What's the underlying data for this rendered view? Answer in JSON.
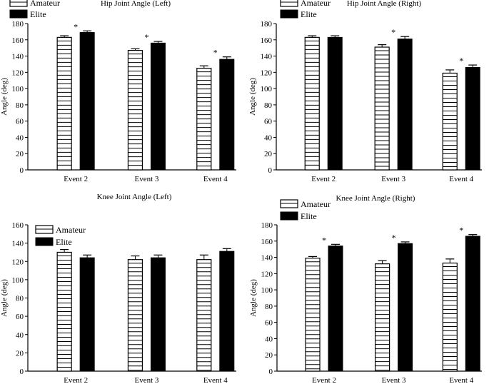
{
  "chart_data": [
    {
      "type": "bar",
      "title": "Hip Joint Angle (Left)",
      "xlabel": "",
      "ylabel": "Angle (deg)",
      "ylim": [
        0,
        180
      ],
      "ytick_step": 20,
      "legend_position": "top-left, above plot",
      "categories": [
        "Event 2",
        "Event 3",
        "Event 4"
      ],
      "series": [
        {
          "name": "Amateur",
          "pattern": "horizontal-stripes",
          "values": [
            163,
            147,
            125
          ],
          "errors": [
            2,
            2,
            3
          ]
        },
        {
          "name": "Elite",
          "pattern": "solid-black",
          "values": [
            169,
            156,
            136
          ],
          "errors": [
            2,
            2,
            3
          ]
        }
      ],
      "annotations": [
        "*",
        "*",
        "*"
      ]
    },
    {
      "type": "bar",
      "title": "Hip Joint Angle (Right)",
      "xlabel": "",
      "ylabel": "Angle (deg)",
      "ylim": [
        0,
        180
      ],
      "ytick_step": 20,
      "legend_position": "top-left, above plot",
      "categories": [
        "Event 2",
        "Event 3",
        "Event 4"
      ],
      "series": [
        {
          "name": "Amateur",
          "pattern": "horizontal-stripes",
          "values": [
            163,
            151,
            119
          ],
          "errors": [
            2,
            3,
            4
          ]
        },
        {
          "name": "Elite",
          "pattern": "solid-black",
          "values": [
            163,
            161,
            126
          ],
          "errors": [
            2,
            3,
            3
          ]
        }
      ],
      "annotations": [
        "",
        "*",
        "*"
      ]
    },
    {
      "type": "bar",
      "title": "Knee Joint Angle (Left)",
      "xlabel": "",
      "ylabel": "Angle (deg)",
      "ylim": [
        0,
        160
      ],
      "ytick_step": 20,
      "legend_position": "top-left, inside plot",
      "categories": [
        "Event 2",
        "Event 3",
        "Event 4"
      ],
      "series": [
        {
          "name": "Amateur",
          "pattern": "horizontal-stripes",
          "values": [
            130,
            122,
            122
          ],
          "errors": [
            3,
            4,
            5
          ]
        },
        {
          "name": "Elite",
          "pattern": "solid-black",
          "values": [
            124,
            124,
            131
          ],
          "errors": [
            3,
            3,
            3
          ]
        }
      ],
      "annotations": [
        "",
        "",
        ""
      ]
    },
    {
      "type": "bar",
      "title": "Knee Joint Angle (Right)",
      "xlabel": "",
      "ylabel": "Angle (deg)",
      "ylim": [
        0,
        180
      ],
      "ytick_step": 20,
      "legend_position": "top-left, above plot",
      "categories": [
        "Event 2",
        "Event 3",
        "Event 4"
      ],
      "series": [
        {
          "name": "Amateur",
          "pattern": "horizontal-stripes",
          "values": [
            139,
            132,
            133
          ],
          "errors": [
            2,
            4,
            5
          ]
        },
        {
          "name": "Elite",
          "pattern": "solid-black",
          "values": [
            154,
            157,
            166
          ],
          "errors": [
            2,
            2,
            2
          ]
        }
      ],
      "annotations": [
        "*",
        "*",
        "*"
      ]
    }
  ],
  "colors": {
    "bar_outline": "#000000",
    "elite_fill": "#000000",
    "amateur_fill": "#ffffff",
    "background": "#ffffff"
  }
}
